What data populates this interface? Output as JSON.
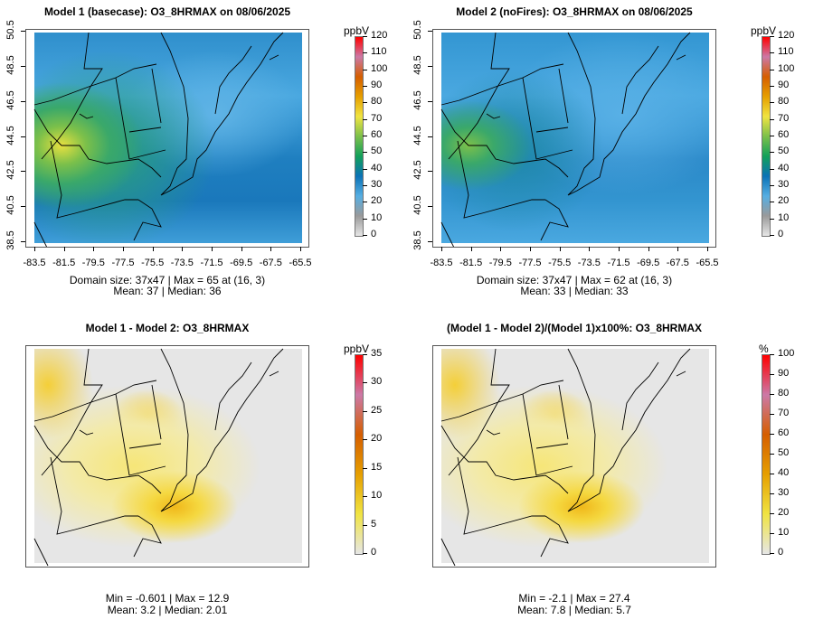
{
  "panels": [
    {
      "title": "Model 1 (basecase): O3_8HRMAX on 08/06/2025",
      "unit": "ppbV",
      "caption1": "Domain size: 37x47 | Max = 65 at (16, 3)",
      "caption2": "Mean: 37 |  Median: 36",
      "colorbar_ticks": [
        "0",
        "10",
        "20",
        "30",
        "40",
        "50",
        "60",
        "70",
        "80",
        "90",
        "100",
        "110",
        "120"
      ],
      "colorbar_max": 120,
      "scheme": "conc"
    },
    {
      "title": "Model 2 (noFires): O3_8HRMAX on 08/06/2025",
      "unit": "ppbV",
      "caption1": "Domain size: 37x47 | Max = 62 at (16, 3)",
      "caption2": "Mean: 33 |  Median: 33",
      "colorbar_ticks": [
        "0",
        "10",
        "20",
        "30",
        "40",
        "50",
        "60",
        "70",
        "80",
        "90",
        "100",
        "110",
        "120"
      ],
      "colorbar_max": 120,
      "scheme": "conc"
    },
    {
      "title": "Model 1 - Model 2: O3_8HRMAX",
      "unit": "ppbV",
      "caption1": "Min = -0.601 | Max = 12.9",
      "caption2": "Mean: 3.2 |  Median: 2.01",
      "colorbar_ticks": [
        "0",
        "5",
        "10",
        "15",
        "20",
        "25",
        "30",
        "35"
      ],
      "colorbar_max": 35,
      "scheme": "diff"
    },
    {
      "title": "(Model 1 - Model 2)/(Model 1)x100%: O3_8HRMAX",
      "unit": "%",
      "caption1": "Min = -2.1 | Max = 27.4",
      "caption2": "Mean: 7.8 |  Median: 5.7",
      "colorbar_ticks": [
        "0",
        "10",
        "20",
        "30",
        "40",
        "50",
        "60",
        "70",
        "80",
        "90",
        "100"
      ],
      "colorbar_max": 100,
      "scheme": "diff"
    }
  ],
  "x_ticks": [
    "-83.5",
    "-81.5",
    "-79.5",
    "-77.5",
    "-75.5",
    "-73.5",
    "-71.5",
    "-69.5",
    "-67.5",
    "-65.5"
  ],
  "y_ticks": [
    "38.5",
    "40.5",
    "42.5",
    "44.5",
    "46.5",
    "48.5",
    "50.5"
  ],
  "colors": {
    "conc_gradient": [
      "#e6e6e6",
      "#9a9a9a",
      "#56aee2",
      "#0b72b6",
      "#12a05a",
      "#7cc04a",
      "#f0e442",
      "#e69f00",
      "#d55e00",
      "#cc79a7",
      "#ff0000"
    ],
    "diff_gradient": [
      "#e6e6e6",
      "#f0e442",
      "#e69f00",
      "#d55e00",
      "#cc79a7",
      "#ff0000"
    ]
  }
}
